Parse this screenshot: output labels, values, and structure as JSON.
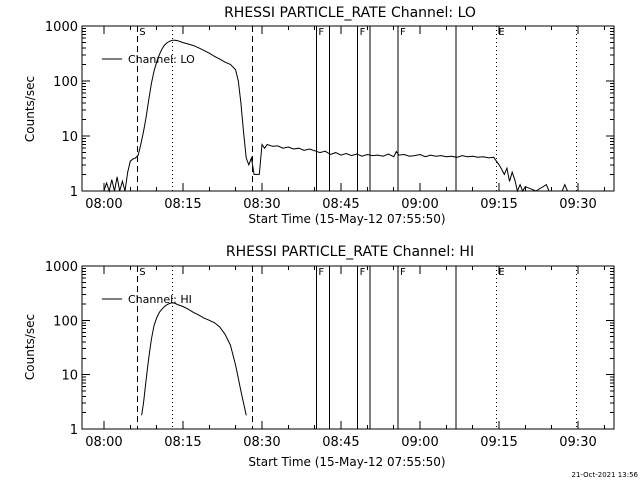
{
  "timestamp": "21-Oct-2021 13:56",
  "chart_data": [
    {
      "type": "line",
      "title": "RHESSI PARTICLE_RATE Channel: LO",
      "xlabel": "Start Time (15-May-12 07:55:50)",
      "ylabel": "Counts/sec",
      "y_scale": "log",
      "ylim": [
        1,
        1000
      ],
      "xlim": [
        "07:55:50",
        "09:36:50"
      ],
      "x_ticks": [
        "08:00",
        "08:15",
        "08:30",
        "08:45",
        "09:00",
        "09:15",
        "09:30"
      ],
      "y_ticks": [
        "1",
        "10",
        "100",
        "1000"
      ],
      "legend": {
        "placement": "top-left",
        "entries": [
          "Channel: LO"
        ]
      },
      "event_markers": [
        {
          "label": "S",
          "time": "08:06:20",
          "style": "dashed"
        },
        {
          "label": "",
          "time": "08:28:10",
          "style": "dashed"
        },
        {
          "label": "",
          "time": "08:13:00",
          "style": "dotted"
        },
        {
          "label": "",
          "time": "09:14:30",
          "style": "dotted"
        },
        {
          "label": "",
          "time": "09:29:40",
          "style": "dotted"
        },
        {
          "label": "F",
          "time": "08:40:20",
          "style": "solid"
        },
        {
          "label": "",
          "time": "08:42:50",
          "style": "solid"
        },
        {
          "label": "F",
          "time": "08:48:10",
          "style": "solid"
        },
        {
          "label": "",
          "time": "08:50:30",
          "style": "solid"
        },
        {
          "label": "F",
          "time": "08:55:50",
          "style": "solid"
        },
        {
          "label": "",
          "time": "09:06:50",
          "style": "solid"
        },
        {
          "label": "E",
          "time": "09:14:30",
          "style": "none"
        }
      ],
      "series": [
        {
          "name": "Channel: LO",
          "points": [
            [
              "08:00:00",
              1
            ],
            [
              "08:00:30",
              1.4
            ],
            [
              "08:01:00",
              1
            ],
            [
              "08:01:30",
              1.6
            ],
            [
              "08:02:00",
              1
            ],
            [
              "08:02:30",
              1.8
            ],
            [
              "08:03:00",
              1
            ],
            [
              "08:03:30",
              1.5
            ],
            [
              "08:04:00",
              1
            ],
            [
              "08:04:30",
              2.2
            ],
            [
              "08:05:00",
              3.5
            ],
            [
              "08:05:30",
              3.8
            ],
            [
              "08:06:00",
              4
            ],
            [
              "08:06:30",
              4.5
            ],
            [
              "08:07:00",
              7
            ],
            [
              "08:07:30",
              12
            ],
            [
              "08:08:00",
              22
            ],
            [
              "08:08:30",
              45
            ],
            [
              "08:09:00",
              90
            ],
            [
              "08:09:30",
              150
            ],
            [
              "08:10:00",
              220
            ],
            [
              "08:10:30",
              300
            ],
            [
              "08:11:00",
              380
            ],
            [
              "08:11:30",
              450
            ],
            [
              "08:12:00",
              500
            ],
            [
              "08:12:30",
              530
            ],
            [
              "08:13:00",
              550
            ],
            [
              "08:13:30",
              550
            ],
            [
              "08:14:00",
              540
            ],
            [
              "08:14:30",
              520
            ],
            [
              "08:15:00",
              500
            ],
            [
              "08:16:00",
              470
            ],
            [
              "08:17:00",
              440
            ],
            [
              "08:18:00",
              400
            ],
            [
              "08:19:00",
              360
            ],
            [
              "08:20:00",
              320
            ],
            [
              "08:21:00",
              280
            ],
            [
              "08:22:00",
              250
            ],
            [
              "08:23:00",
              220
            ],
            [
              "08:24:00",
              200
            ],
            [
              "08:25:00",
              160
            ],
            [
              "08:25:30",
              100
            ],
            [
              "08:26:00",
              40
            ],
            [
              "08:26:30",
              12
            ],
            [
              "08:27:00",
              4
            ],
            [
              "08:27:30",
              3
            ],
            [
              "08:28:00",
              4
            ],
            [
              "08:28:30",
              2
            ],
            [
              "08:29:00",
              2
            ],
            [
              "08:29:30",
              2
            ],
            [
              "08:30:00",
              7
            ],
            [
              "08:30:30",
              6
            ],
            [
              "08:31:00",
              7
            ],
            [
              "08:32:00",
              6.5
            ],
            [
              "08:33:00",
              6.6
            ],
            [
              "08:34:00",
              6
            ],
            [
              "08:35:00",
              6.3
            ],
            [
              "08:36:00",
              5.8
            ],
            [
              "08:37:00",
              6
            ],
            [
              "08:38:00",
              5.5
            ],
            [
              "08:39:00",
              5.8
            ],
            [
              "08:40:00",
              5.4
            ],
            [
              "08:41:00",
              5
            ],
            [
              "08:42:00",
              5.3
            ],
            [
              "08:43:00",
              4.6
            ],
            [
              "08:44:00",
              5
            ],
            [
              "08:45:00",
              4.5
            ],
            [
              "08:46:00",
              4.8
            ],
            [
              "08:47:00",
              4.4
            ],
            [
              "08:48:00",
              4.7
            ],
            [
              "08:49:00",
              4.3
            ],
            [
              "08:50:00",
              4.6
            ],
            [
              "08:51:00",
              4.4
            ],
            [
              "08:52:00",
              4.5
            ],
            [
              "08:53:00",
              4.3
            ],
            [
              "08:54:00",
              4.7
            ],
            [
              "08:55:00",
              4.2
            ],
            [
              "08:55:30",
              5.2
            ],
            [
              "08:56:00",
              4.5
            ],
            [
              "08:57:00",
              4.6
            ],
            [
              "08:58:00",
              4.3
            ],
            [
              "08:59:00",
              4.4
            ],
            [
              "09:00:00",
              4.6
            ],
            [
              "09:01:00",
              4.2
            ],
            [
              "09:02:00",
              4.5
            ],
            [
              "09:03:00",
              4.3
            ],
            [
              "09:04:00",
              4.4
            ],
            [
              "09:05:00",
              4.2
            ],
            [
              "09:06:00",
              4.3
            ],
            [
              "09:07:00",
              4.1
            ],
            [
              "09:08:00",
              4.4
            ],
            [
              "09:09:00",
              4.2
            ],
            [
              "09:10:00",
              4.3
            ],
            [
              "09:11:00",
              4.1
            ],
            [
              "09:12:00",
              4.2
            ],
            [
              "09:13:00",
              4
            ],
            [
              "09:14:00",
              4.1
            ],
            [
              "09:15:00",
              3
            ],
            [
              "09:15:30",
              2.5
            ],
            [
              "09:16:00",
              2
            ],
            [
              "09:16:30",
              2.6
            ],
            [
              "09:17:00",
              1.5
            ],
            [
              "09:17:30",
              2.2
            ],
            [
              "09:18:00",
              1.6
            ],
            [
              "09:18:30",
              1
            ],
            [
              "09:19:00",
              1.3
            ],
            [
              "09:19:30",
              1
            ],
            [
              "09:20:00",
              1.2
            ],
            [
              "09:22:00",
              1
            ],
            [
              "09:24:00",
              1.3
            ],
            [
              "09:24:30",
              1
            ],
            [
              "09:27:00",
              1
            ],
            [
              "09:27:30",
              1.3
            ],
            [
              "09:28:00",
              1
            ]
          ]
        }
      ]
    },
    {
      "type": "line",
      "title": "RHESSI PARTICLE_RATE Channel: HI",
      "xlabel": "Start Time (15-May-12 07:55:50)",
      "ylabel": "Counts/sec",
      "y_scale": "log",
      "ylim": [
        1,
        1000
      ],
      "xlim": [
        "07:55:50",
        "09:36:50"
      ],
      "x_ticks": [
        "08:00",
        "08:15",
        "08:30",
        "08:45",
        "09:00",
        "09:15",
        "09:30"
      ],
      "y_ticks": [
        "1",
        "10",
        "100",
        "1000"
      ],
      "legend": {
        "placement": "top-left",
        "entries": [
          "Channel: HI"
        ]
      },
      "event_markers": [
        {
          "label": "S",
          "time": "08:06:20",
          "style": "dashed"
        },
        {
          "label": "",
          "time": "08:28:10",
          "style": "dashed"
        },
        {
          "label": "",
          "time": "08:13:00",
          "style": "dotted"
        },
        {
          "label": "",
          "time": "09:14:30",
          "style": "dotted"
        },
        {
          "label": "",
          "time": "09:29:40",
          "style": "dotted"
        },
        {
          "label": "F",
          "time": "08:40:20",
          "style": "solid"
        },
        {
          "label": "",
          "time": "08:42:50",
          "style": "solid"
        },
        {
          "label": "F",
          "time": "08:48:10",
          "style": "solid"
        },
        {
          "label": "",
          "time": "08:50:30",
          "style": "solid"
        },
        {
          "label": "F",
          "time": "08:55:50",
          "style": "solid"
        },
        {
          "label": "",
          "time": "09:06:50",
          "style": "solid"
        },
        {
          "label": "E",
          "time": "09:14:30",
          "style": "none"
        }
      ],
      "series": [
        {
          "name": "Channel: HI",
          "points": [
            [
              "08:07:10",
              1.8
            ],
            [
              "08:07:30",
              3
            ],
            [
              "08:08:00",
              8
            ],
            [
              "08:08:30",
              20
            ],
            [
              "08:09:00",
              45
            ],
            [
              "08:09:30",
              80
            ],
            [
              "08:10:00",
              110
            ],
            [
              "08:10:30",
              140
            ],
            [
              "08:11:00",
              160
            ],
            [
              "08:11:30",
              180
            ],
            [
              "08:12:00",
              195
            ],
            [
              "08:12:30",
              205
            ],
            [
              "08:13:00",
              210
            ],
            [
              "08:13:30",
              205
            ],
            [
              "08:14:00",
              195
            ],
            [
              "08:15:00",
              180
            ],
            [
              "08:16:00",
              160
            ],
            [
              "08:17:00",
              140
            ],
            [
              "08:18:00",
              125
            ],
            [
              "08:19:00",
              110
            ],
            [
              "08:20:00",
              100
            ],
            [
              "08:21:00",
              90
            ],
            [
              "08:22:00",
              75
            ],
            [
              "08:23:00",
              55
            ],
            [
              "08:24:00",
              35
            ],
            [
              "08:25:00",
              15
            ],
            [
              "08:26:00",
              5
            ],
            [
              "08:27:00",
              1.8
            ]
          ]
        }
      ]
    }
  ]
}
